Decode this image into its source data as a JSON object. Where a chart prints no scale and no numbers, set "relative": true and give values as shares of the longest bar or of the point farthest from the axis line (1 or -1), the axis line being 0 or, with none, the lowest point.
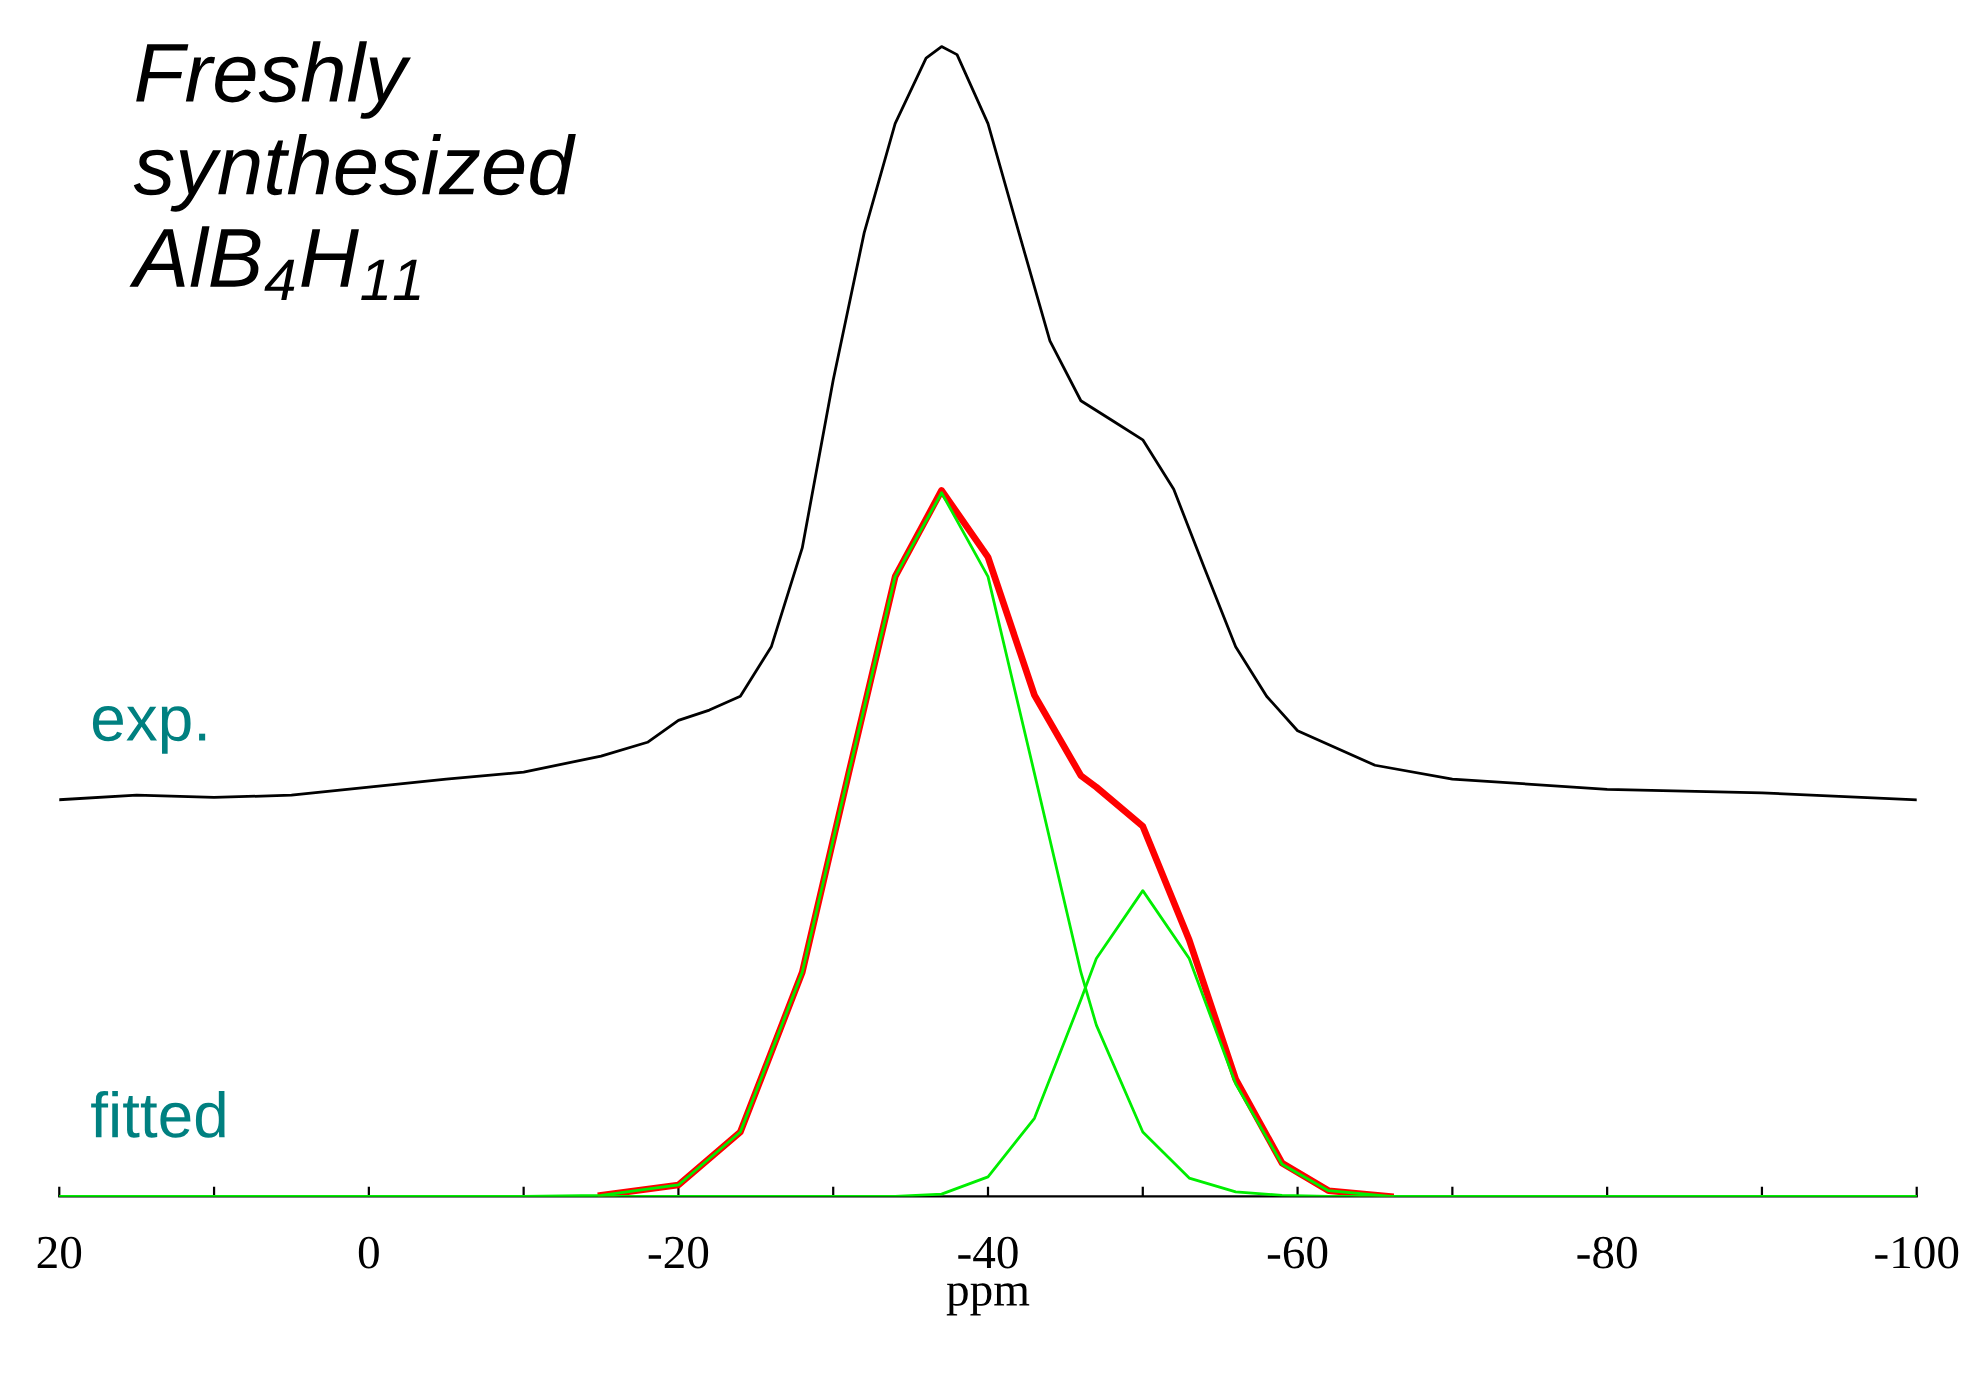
{
  "chart_data": {
    "type": "line",
    "relative": true,
    "title": "Freshly\nsynthesized\nAlB$_{4}$H$_{11}$",
    "xlabel": "ppm",
    "xlim": [
      20,
      -100
    ],
    "xticks": [
      20,
      {
        "value": 10,
        "label": null
      },
      0,
      {
        "value": -10,
        "label": null
      },
      -20,
      {
        "value": -30,
        "label": null
      },
      -40,
      {
        "value": -50,
        "label": null
      },
      -60,
      {
        "value": -70,
        "label": null
      },
      -80,
      {
        "value": -90,
        "label": null
      },
      -100
    ],
    "marker": "none",
    "line_style": "solid",
    "grid": false,
    "legend": false,
    "series": [
      {
        "name": "exp.",
        "color": "#000000",
        "x": [
          20,
          15,
          10,
          5,
          0,
          -5,
          -10,
          -15,
          -18,
          -20,
          -22,
          -24,
          -26,
          -28,
          -30,
          -32,
          -34,
          -36,
          -37,
          -38,
          -40,
          -42,
          -44,
          -46,
          -48,
          -50,
          -52,
          -54,
          -56,
          -58,
          -60,
          -65,
          -70,
          -80,
          -90,
          -100
        ],
        "values": [
          0.345,
          0.349,
          0.347,
          0.349,
          0.356,
          0.363,
          0.369,
          0.383,
          0.395,
          0.414,
          0.423,
          0.435,
          0.478,
          0.564,
          0.71,
          0.838,
          0.933,
          0.99,
          1,
          0.993,
          0.933,
          0.838,
          0.744,
          0.692,
          0.675,
          0.658,
          0.615,
          0.546,
          0.478,
          0.435,
          0.405,
          0.375,
          0.363,
          0.354,
          0.351,
          0.345
        ]
      },
      {
        "color": "#ff0000",
        "x": [
          -15,
          -20,
          -24,
          -28,
          -31,
          -34,
          -37,
          -40,
          -43,
          -46,
          -47,
          -50,
          -53,
          -56,
          -59,
          -62,
          -66
        ],
        "values": [
          0.001,
          0.01,
          0.056,
          0.195,
          0.368,
          0.539,
          0.614,
          0.556,
          0.436,
          0.366,
          0.356,
          0.322,
          0.223,
          0.102,
          0.029,
          0.005,
          0
        ]
      },
      {
        "name": "fitted",
        "color": "#00ee00",
        "x": [
          20,
          0,
          -10,
          -15,
          -20,
          -24,
          -28,
          -31,
          -34,
          -37,
          -40,
          -43,
          -46,
          -47,
          -50,
          -53,
          -56,
          -59,
          -62,
          -66,
          -80,
          -100
        ],
        "values": [
          0,
          0,
          0,
          0.001,
          0.01,
          0.056,
          0.195,
          0.368,
          0.539,
          0.612,
          0.539,
          0.368,
          0.195,
          0.149,
          0.056,
          0.016,
          0.004,
          0.001,
          0,
          0,
          0,
          0
        ]
      },
      {
        "color": "#00ee00",
        "x": [
          20,
          0,
          -10,
          -15,
          -20,
          -24,
          -28,
          -31,
          -34,
          -37,
          -40,
          -43,
          -46,
          -47,
          -50,
          -53,
          -56,
          -59,
          -62,
          -66,
          -80,
          -100
        ],
        "values": [
          0,
          0,
          0,
          0,
          0,
          0,
          0,
          0,
          0,
          0.002,
          0.017,
          0.068,
          0.171,
          0.207,
          0.266,
          0.207,
          0.098,
          0.028,
          0.005,
          0,
          0,
          0
        ]
      }
    ]
  }
}
